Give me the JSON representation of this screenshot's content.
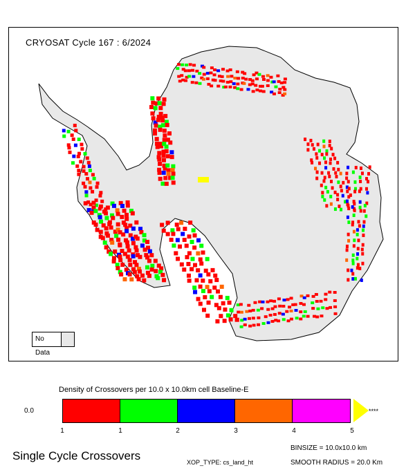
{
  "map": {
    "title": "CRYOSAT Cycle 167 : 6/2024",
    "nodata_label": "No Data",
    "colors": {
      "land": "#e8e8e8",
      "nodata": "#e8e8e8",
      "coast": "#000000"
    }
  },
  "colorbar": {
    "title": "Density of Crossovers per  10.0 x  10.0km cell Baseline-E",
    "min_label": "0.0",
    "segments": [
      {
        "color": "#ff0000"
      },
      {
        "color": "#00ff00"
      },
      {
        "color": "#0000ff"
      },
      {
        "color": "#ff6600"
      },
      {
        "color": "#ff00ff"
      }
    ],
    "overflow_color": "#ffff00",
    "overflow_label": "****",
    "ticks": [
      "1",
      "1",
      "2",
      "3",
      "4",
      "5"
    ]
  },
  "footer": {
    "left_title": "Single Cycle Crossovers",
    "xop_type": "XOP_TYPE: cs_land_ht",
    "binsize": "BINSIZE =  10.0x10.0 km",
    "smooth_radius": "SMOOTH RADIUS =   20.0 Km"
  }
}
